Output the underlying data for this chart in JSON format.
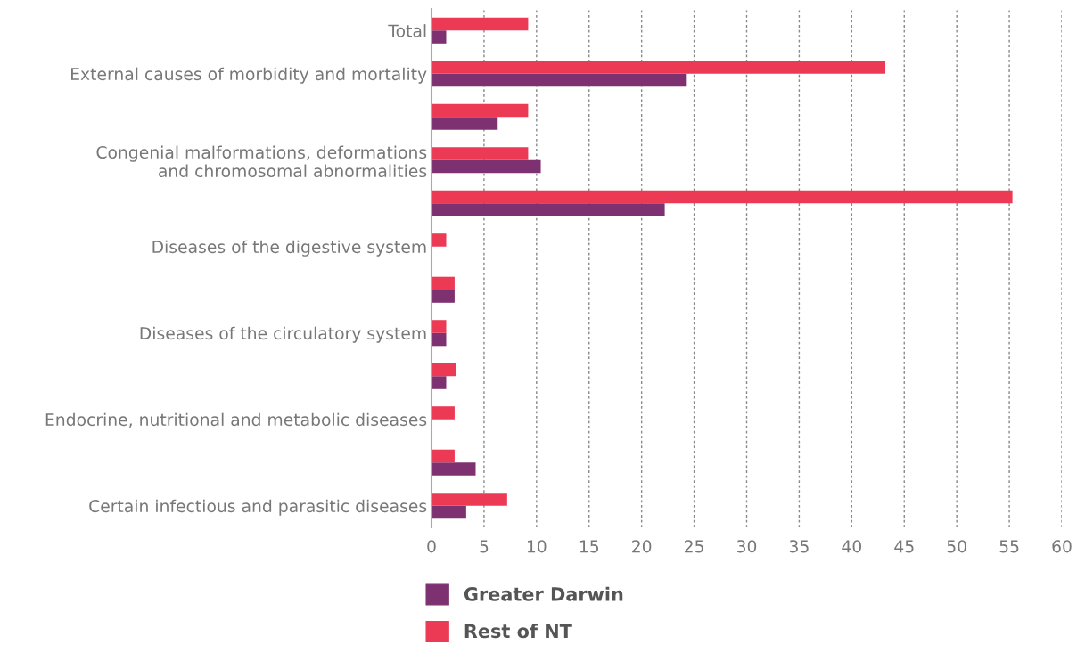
{
  "chart_data": {
    "type": "bar",
    "orientation": "horizontal",
    "categories": [
      "Total",
      "External causes of morbidity and mortality",
      null,
      "Congenial malformations, deformations\nand chromosomal abnormalities",
      null,
      "Diseases of the digestive system",
      null,
      "Diseases of the circulatory system",
      null,
      "Endocrine, nutritional and metabolic diseases",
      null,
      "Certain infectious and parasitic diseases"
    ],
    "series": [
      {
        "name": "Greater Darwin",
        "color": "#7e3170",
        "values": [
          1.4,
          24.3,
          6.3,
          10.4,
          22.2,
          null,
          2.2,
          1.4,
          1.4,
          null,
          4.2,
          3.3
        ]
      },
      {
        "name": "Rest of NT",
        "color": "#ec3a55",
        "values": [
          9.2,
          43.2,
          9.2,
          9.2,
          55.3,
          1.4,
          2.2,
          1.4,
          2.3,
          2.2,
          2.2,
          7.2
        ]
      }
    ],
    "xlim": [
      0,
      60
    ],
    "xticks": [
      0,
      5,
      10,
      15,
      20,
      25,
      30,
      35,
      40,
      45,
      50,
      55,
      60
    ],
    "grid": "x",
    "legend": "bottom"
  }
}
